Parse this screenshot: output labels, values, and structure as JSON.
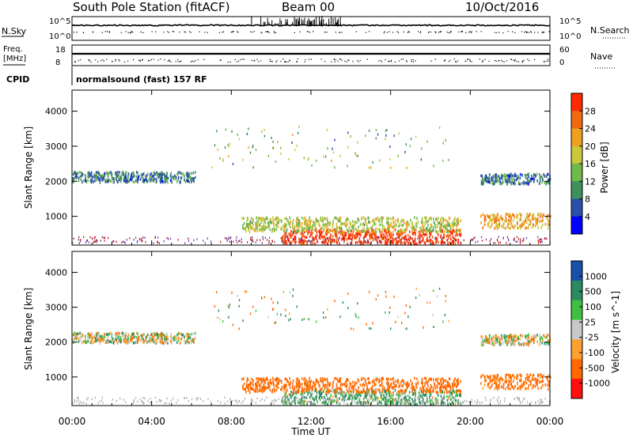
{
  "header": {
    "station": "South Pole Station (fitACF)",
    "beam": "Beam 00",
    "date": "10/Oct/2016"
  },
  "strip1": {
    "left_label": "N.Sky",
    "right_label": "N.Search",
    "left_ticks": [
      "10^5",
      "10^0"
    ],
    "right_ticks": [
      "10^5",
      "10^0"
    ]
  },
  "strip2": {
    "left_label_top": "Freq.",
    "left_label_bottom": "[MHz]",
    "right_label": "Nave",
    "left_ticks": [
      "18",
      "8"
    ],
    "right_ticks": [
      "60",
      "0"
    ]
  },
  "cpid": {
    "label": "CPID",
    "text": "normalsound (fast) 157 RF"
  },
  "colors": {
    "power_scale": [
      "#0000ff",
      "#2a4fa8",
      "#3f8f5e",
      "#6fb84a",
      "#c8c83c",
      "#f0a020",
      "#f06a10",
      "#ff2a00"
    ],
    "velocity_scale": [
      "#ff1010",
      "#ff6a00",
      "#ffa030",
      "#c8c8c8",
      "#40c040",
      "#2a8a60",
      "#1a4faa"
    ]
  },
  "chart_data": [
    {
      "type": "heatmap",
      "title": "",
      "xlabel": "",
      "ylabel": "Slant Range [km]",
      "x_ticks": [
        "00:00",
        "04:00",
        "08:00",
        "12:00",
        "16:00",
        "20:00",
        "00:00"
      ],
      "y_ticks": [
        "1000",
        "2000",
        "3000",
        "4000"
      ],
      "ylim": [
        180,
        4600
      ],
      "colorbar": {
        "label": "Power [dB]",
        "ticks": [
          "4",
          "8",
          "12",
          "16",
          "20",
          "24",
          "28"
        ],
        "range": [
          0,
          30
        ]
      },
      "echo_bands": [
        {
          "t_start": 0.0,
          "t_end": 6.2,
          "range_km": 2150,
          "value_db": 8
        },
        {
          "t_start": 10.5,
          "t_end": 19.5,
          "range_km": 450,
          "value_db": 28
        },
        {
          "t_start": 8.5,
          "t_end": 19.5,
          "range_km": 800,
          "value_db": 16
        },
        {
          "t_start": 20.5,
          "t_end": 24.0,
          "range_km": 2100,
          "value_db": 8
        },
        {
          "t_start": 20.5,
          "t_end": 24.0,
          "range_km": 900,
          "value_db": 20
        }
      ]
    },
    {
      "type": "heatmap",
      "title": "",
      "xlabel": "Time UT",
      "ylabel": "Slant Range [km]",
      "x_ticks": [
        "00:00",
        "04:00",
        "08:00",
        "12:00",
        "16:00",
        "20:00",
        "00:00"
      ],
      "y_ticks": [
        "1000",
        "2000",
        "3000",
        "4000"
      ],
      "ylim": [
        180,
        4600
      ],
      "colorbar": {
        "label": "Velocity [m s^-1]",
        "ticks": [
          "1000",
          "500",
          "100",
          "25",
          "-25",
          "-100",
          "-500",
          "-1000"
        ],
        "range": [
          -1000,
          1000
        ]
      },
      "echo_bands": [
        {
          "t_start": 0.0,
          "t_end": 6.2,
          "range_km": 2150,
          "value_ms": 0
        },
        {
          "t_start": 10.5,
          "t_end": 19.5,
          "range_km": 450,
          "value_ms": 100
        },
        {
          "t_start": 8.5,
          "t_end": 19.5,
          "range_km": 800,
          "value_ms": -300
        },
        {
          "t_start": 20.5,
          "t_end": 24.0,
          "range_km": 2100,
          "value_ms": 0
        },
        {
          "t_start": 20.5,
          "t_end": 24.0,
          "range_km": 900,
          "value_ms": -200
        }
      ]
    }
  ]
}
